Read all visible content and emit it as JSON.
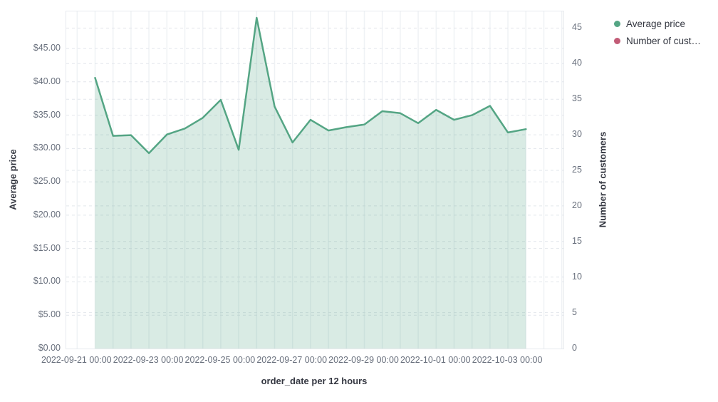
{
  "legend": {
    "items": [
      {
        "label": "Average price",
        "color": "#54a584"
      },
      {
        "label": "Number of cust…",
        "color": "#c25b76"
      }
    ]
  },
  "axes": {
    "left": {
      "title": "Average price",
      "tick_labels": [
        "$0.00",
        "$5.00",
        "$10.00",
        "$15.00",
        "$20.00",
        "$25.00",
        "$30.00",
        "$35.00",
        "$40.00",
        "$45.00"
      ],
      "tick_values": [
        0,
        5,
        10,
        15,
        20,
        25,
        30,
        35,
        40,
        45
      ]
    },
    "right": {
      "title": "Number of customers",
      "tick_labels": [
        "0",
        "5",
        "10",
        "15",
        "20",
        "25",
        "30",
        "35",
        "40",
        "45"
      ],
      "tick_values": [
        0,
        5,
        10,
        15,
        20,
        25,
        30,
        35,
        40,
        45
      ]
    },
    "x": {
      "title": "order_date per 12 hours",
      "tick_labels": [
        "2022-09-21 00:00",
        "2022-09-23 00:00",
        "2022-09-25 00:00",
        "2022-09-27 00:00",
        "2022-09-29 00:00",
        "2022-10-01 00:00",
        "2022-10-03 00:00"
      ],
      "tick_halfday_index": [
        0,
        4,
        8,
        12,
        16,
        20,
        24
      ]
    }
  },
  "chart_data": {
    "type": "area",
    "title": "",
    "xlabel": "order_date per 12 hours",
    "ylabel_left": "Average price",
    "ylabel_right": "Number of customers",
    "legend_position": "top-right",
    "grid": true,
    "x_interval": "12 hours",
    "x": [
      "2022-09-21 12:00",
      "2022-09-22 00:00",
      "2022-09-22 12:00",
      "2022-09-23 00:00",
      "2022-09-23 12:00",
      "2022-09-24 00:00",
      "2022-09-24 12:00",
      "2022-09-25 00:00",
      "2022-09-25 12:00",
      "2022-09-26 00:00",
      "2022-09-26 12:00",
      "2022-09-27 00:00",
      "2022-09-27 12:00",
      "2022-09-28 00:00",
      "2022-09-28 12:00",
      "2022-09-29 00:00",
      "2022-09-29 12:00",
      "2022-09-30 00:00",
      "2022-09-30 12:00",
      "2022-10-01 00:00",
      "2022-10-01 12:00",
      "2022-10-02 00:00",
      "2022-10-02 12:00",
      "2022-10-03 00:00",
      "2022-10-03 12:00"
    ],
    "series": [
      {
        "name": "Average price",
        "color": "#54a584",
        "fill": "rgba(84,165,132,0.22)",
        "values": [
          40.6,
          31.9,
          32.0,
          29.3,
          32.1,
          33.0,
          34.6,
          37.3,
          29.8,
          49.6,
          36.3,
          30.9,
          34.3,
          32.7,
          33.2,
          33.6,
          35.6,
          35.3,
          33.8,
          35.8,
          34.3,
          35.0,
          36.4,
          32.4,
          32.9
        ]
      }
    ],
    "left_axis_range": [
      0,
      50.6
    ],
    "right_axis_range": [
      0,
      47.4
    ]
  },
  "colors": {
    "grid_dashed": "#e2e6eb",
    "grid_vertical": "#eff2f5",
    "tick_text": "#69707d",
    "title_text": "#343741"
  }
}
